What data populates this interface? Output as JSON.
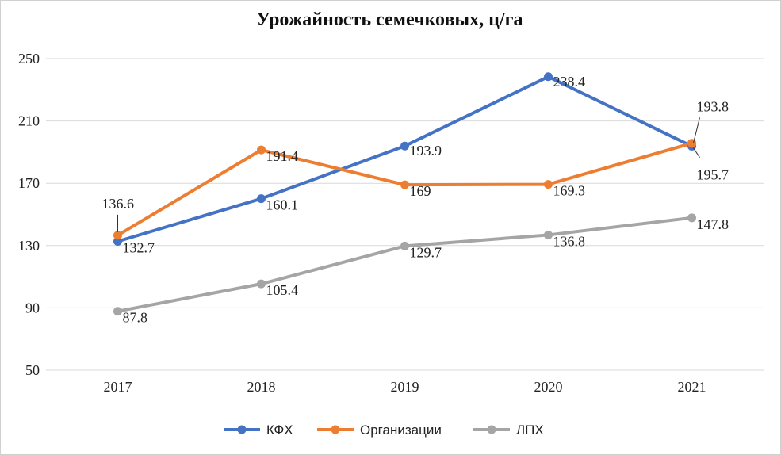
{
  "chart_data": {
    "type": "line",
    "title": "Урожайность семечковых, ц/га",
    "categories": [
      "2017",
      "2018",
      "2019",
      "2020",
      "2021"
    ],
    "ylim": [
      50,
      250
    ],
    "yticks": [
      50,
      90,
      130,
      170,
      210,
      250
    ],
    "grid": true,
    "legend": "bottom",
    "series": [
      {
        "name": "КФХ",
        "color": "#4472c4",
        "values": [
          132.7,
          160.1,
          193.9,
          238.4,
          193.8
        ],
        "labels": [
          "132.7",
          "160.1",
          "193.9",
          "238.4",
          "193.8"
        ]
      },
      {
        "name": "Организации",
        "color": "#ed7d31",
        "values": [
          136.6,
          191.4,
          169,
          169.3,
          195.7
        ],
        "labels": [
          "136.6",
          "191.4",
          "169",
          "169.3",
          "195.7"
        ]
      },
      {
        "name": "ЛПХ",
        "color": "#a5a5a5",
        "values": [
          87.8,
          105.4,
          129.7,
          136.8,
          147.8
        ],
        "labels": [
          "87.8",
          "105.4",
          "129.7",
          "136.8",
          "147.8"
        ]
      }
    ]
  }
}
